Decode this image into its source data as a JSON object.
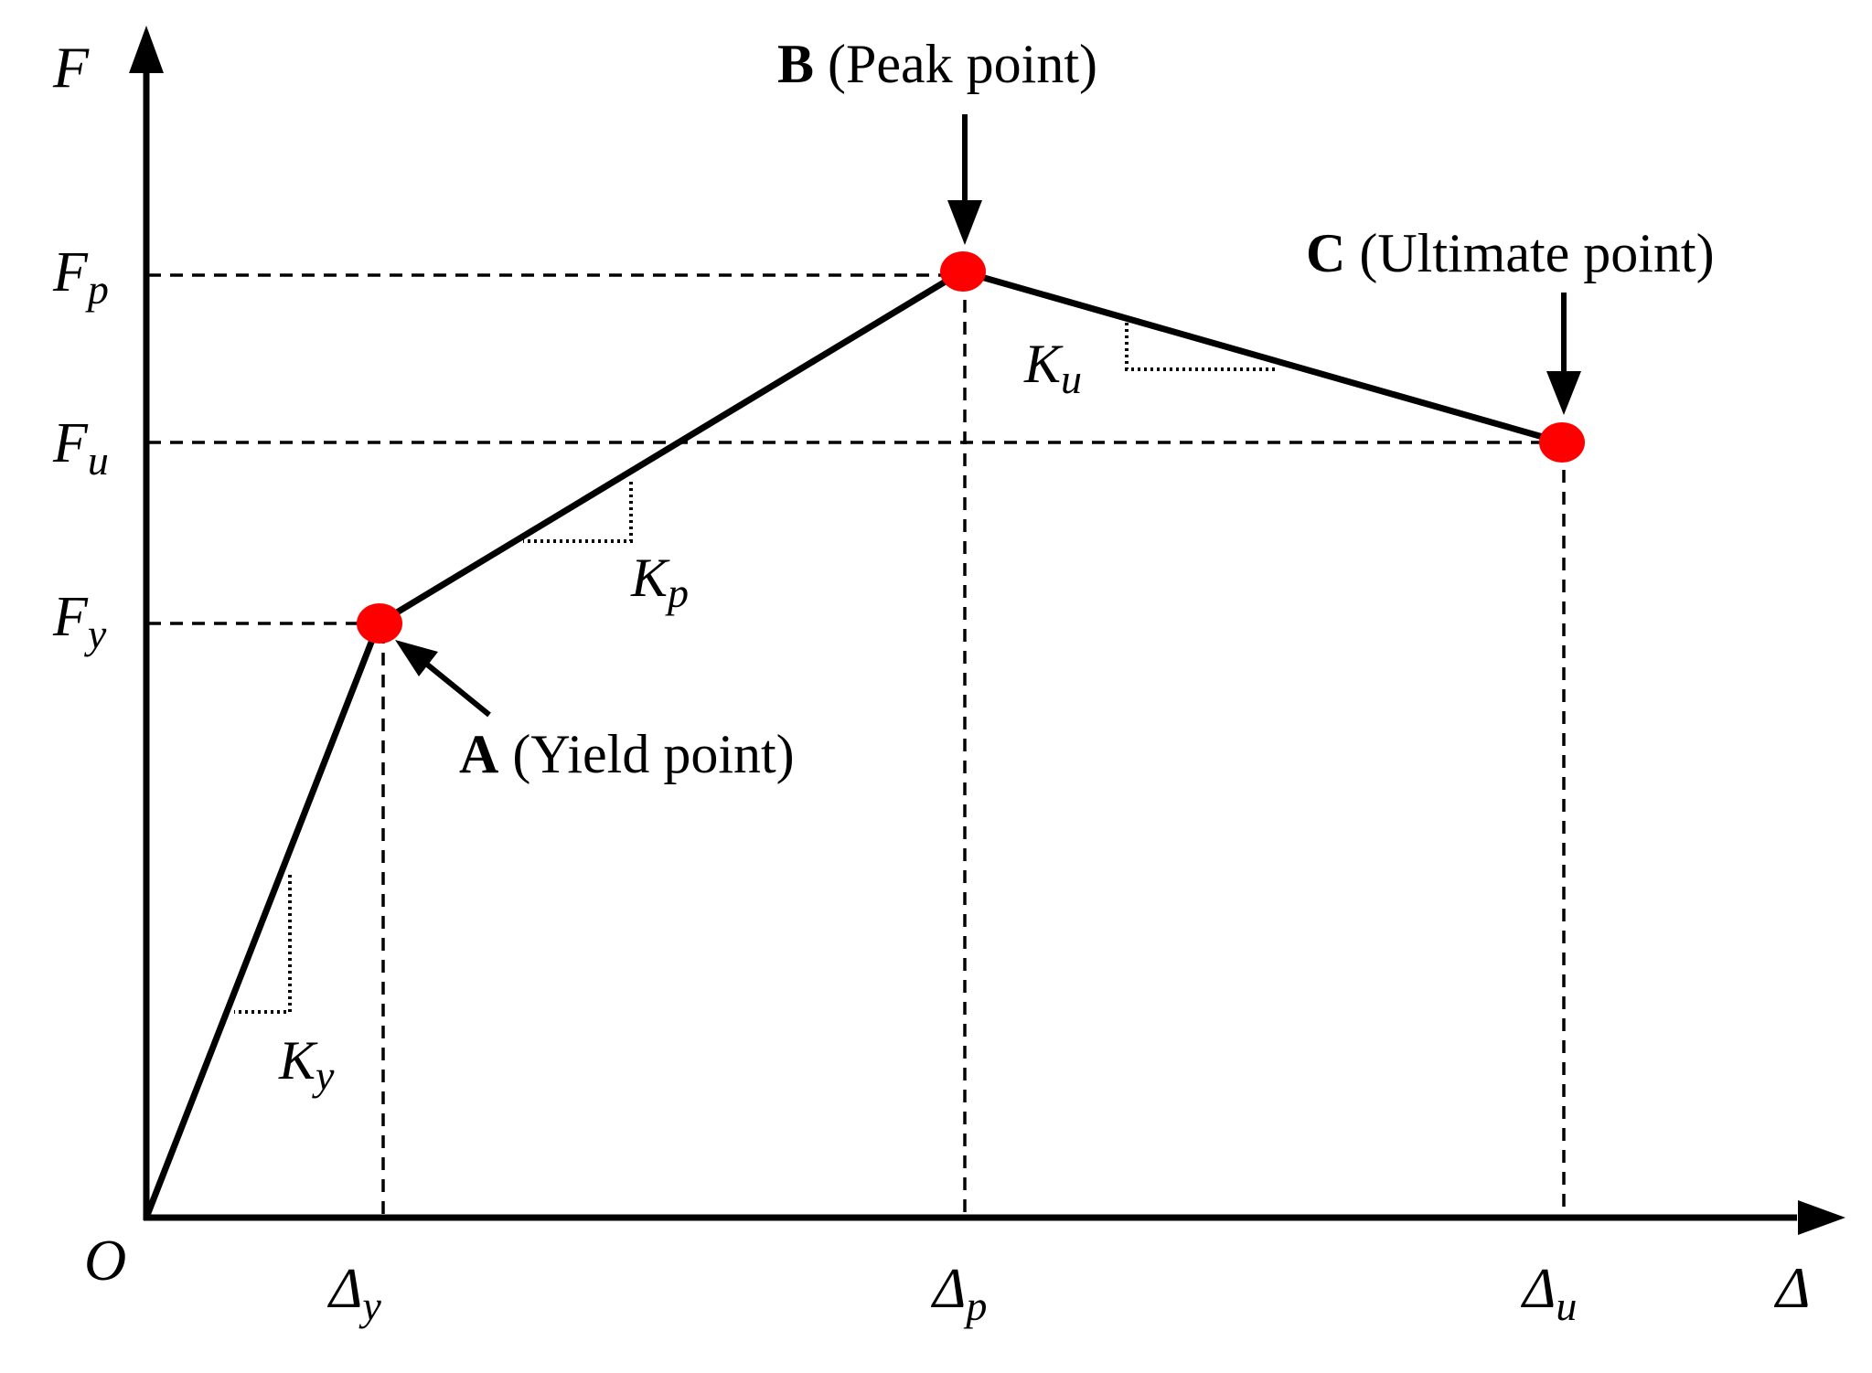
{
  "colors": {
    "line": "#000000",
    "point": "#ff0000",
    "background": "#ffffff"
  },
  "axes": {
    "y_label": "F",
    "x_label": "Δ",
    "origin_label": "O"
  },
  "y_ticks": [
    {
      "base": "F",
      "sub": "p"
    },
    {
      "base": "F",
      "sub": "u"
    },
    {
      "base": "F",
      "sub": "y"
    }
  ],
  "x_ticks": [
    {
      "base": "Δ",
      "sub": "y"
    },
    {
      "base": "Δ",
      "sub": "p"
    },
    {
      "base": "Δ",
      "sub": "u"
    }
  ],
  "points": {
    "A": {
      "letter": "A",
      "text": " (Yield point)"
    },
    "B": {
      "letter": "B",
      "text": " (Peak point)"
    },
    "C": {
      "letter": "C",
      "text": " (Ultimate point)"
    }
  },
  "slopes": {
    "Ky": {
      "base": "K",
      "sub": "y"
    },
    "Kp": {
      "base": "K",
      "sub": "p"
    },
    "Ku": {
      "base": "K",
      "sub": "u"
    }
  }
}
